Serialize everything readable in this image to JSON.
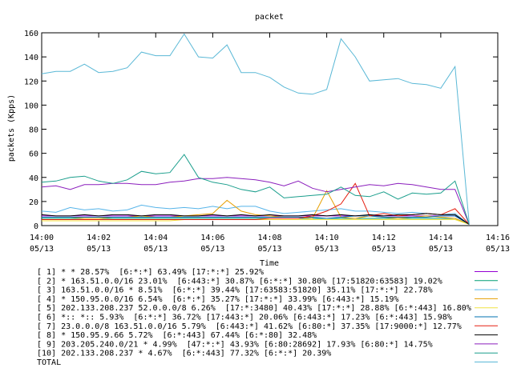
{
  "chart_data": {
    "type": "line",
    "title": "packet",
    "xlabel": "Time",
    "ylabel": "packets (Kpps)",
    "ylim": [
      0,
      160
    ],
    "yticks": [
      0,
      20,
      40,
      60,
      80,
      100,
      120,
      140,
      160
    ],
    "xlim": [
      "14:00",
      "14:16"
    ],
    "xticks": [
      {
        "time": "14:00",
        "date": "05/13"
      },
      {
        "time": "14:02",
        "date": "05/13"
      },
      {
        "time": "14:04",
        "date": "05/13"
      },
      {
        "time": "14:06",
        "date": "05/13"
      },
      {
        "time": "14:08",
        "date": "05/13"
      },
      {
        "time": "14:10",
        "date": "05/13"
      },
      {
        "time": "14:12",
        "date": "05/13"
      },
      {
        "time": "14:14",
        "date": "05/13"
      },
      {
        "time": "14:16",
        "date": "05/13"
      }
    ],
    "grid": false,
    "legend_placement": "bottom",
    "x": [
      "14:00",
      "14:00:30",
      "14:01",
      "14:01:30",
      "14:02",
      "14:02:30",
      "14:03",
      "14:03:30",
      "14:04",
      "14:04:30",
      "14:05",
      "14:05:30",
      "14:06",
      "14:06:30",
      "14:07",
      "14:07:30",
      "14:08",
      "14:08:30",
      "14:09",
      "14:09:30",
      "14:10",
      "14:10:30",
      "14:11",
      "14:11:30",
      "14:12",
      "14:12:30",
      "14:13",
      "14:13:30",
      "14:14",
      "14:14:30",
      "14:15"
    ],
    "series": [
      {
        "name": "[ 1] * * 28.57%  [6:*:*] 63.49% [17:*:*] 25.92%",
        "color": "#9400d3",
        "values": [
          8,
          8,
          8,
          8,
          8,
          8,
          8,
          8,
          8,
          8,
          8,
          8,
          8,
          8,
          8,
          8,
          8,
          8,
          8,
          8,
          8,
          8,
          8,
          8,
          8,
          8,
          8,
          8,
          8,
          8,
          1
        ]
      },
      {
        "name": "[ 2] * 163.51.0.0/16 23.01%  [6:443:*] 30.87% [6:*:*] 30.80% [17:51820:63583] 19.02%",
        "color": "#009e73",
        "values": [
          6,
          6,
          6,
          6,
          6,
          6,
          6,
          6,
          6,
          6,
          6,
          6,
          6,
          6,
          6,
          6,
          6,
          6,
          6,
          6,
          6,
          6,
          6,
          6,
          6,
          6,
          6,
          6,
          6,
          6,
          1
        ]
      },
      {
        "name": "[ 3] 163.51.0.0/16 * 8.51%  [6:*:*] 39.44% [17:63583:51820] 35.11% [17:*:*] 22.78%",
        "color": "#56b4e9",
        "values": [
          12,
          11,
          15,
          13,
          14,
          12,
          13,
          17,
          15,
          14,
          15,
          14,
          16,
          14,
          16,
          16,
          12,
          10,
          11,
          12,
          13,
          14,
          12,
          12,
          11,
          10,
          11,
          10,
          9,
          10,
          1
        ]
      },
      {
        "name": "[ 4] * 150.95.0.0/16 6.54%  [6:*:*] 35.27% [17:*:*] 33.99% [6:443:*] 15.19%",
        "color": "#e69f00",
        "values": [
          7,
          7,
          7,
          6,
          6,
          7,
          7,
          8,
          7,
          7,
          8,
          9,
          10,
          21,
          12,
          9,
          8,
          7,
          7,
          6,
          29,
          7,
          6,
          8,
          7,
          6,
          7,
          8,
          7,
          6,
          1
        ]
      },
      {
        "name": "[ 5] 202.133.208.237 52.0.0.0/8 6.26%  [17:*:3480] 40.43% [17:*:*] 28.88% [6:*:443] 16.80%",
        "color": "#f0e442",
        "values": [
          4,
          4,
          4,
          4,
          4,
          4,
          4,
          4,
          4,
          4,
          5,
          5,
          5,
          5,
          5,
          5,
          5,
          5,
          5,
          5,
          5,
          5,
          5,
          5,
          5,
          5,
          5,
          5,
          5,
          5,
          1
        ]
      },
      {
        "name": "[ 6] *:: *:: 5.93%  [6:*:*] 36.72% [17:443:*] 20.06% [6:443:*] 17.23% [6:*:443] 15.98%",
        "color": "#0072b2",
        "values": [
          7,
          7,
          7,
          7,
          7,
          7,
          7,
          7,
          7,
          7,
          7,
          7,
          7,
          7,
          7,
          7,
          7,
          7,
          7,
          7,
          6,
          7,
          8,
          8,
          7,
          7,
          7,
          7,
          8,
          8,
          1
        ]
      },
      {
        "name": "[ 7] 23.0.0.0/8 163.51.0.0/16 5.79%  [6:443:*] 41.62% [6:80:*] 37.35% [17:9000:*] 12.77%",
        "color": "#e51e10",
        "values": [
          5,
          5,
          5,
          5,
          5,
          5,
          5,
          5,
          5,
          5,
          5,
          5,
          5,
          5,
          5,
          5,
          6,
          6,
          6,
          8,
          12,
          18,
          35,
          8,
          10,
          8,
          9,
          10,
          9,
          14,
          1
        ]
      },
      {
        "name": "[ 8] * 150.95.9.66 5.72%  [6:*:443] 67.44% [6:*:80] 32.48%",
        "color": "#000000",
        "values": [
          9,
          8,
          8,
          9,
          8,
          9,
          9,
          8,
          9,
          9,
          8,
          8,
          9,
          8,
          9,
          8,
          9,
          8,
          8,
          9,
          8,
          9,
          8,
          9,
          8,
          9,
          9,
          10,
          9,
          9,
          1
        ]
      },
      {
        "name": "[ 9] 203.205.240.0/21 * 4.99%  [47:*:*] 43.93% [6:80:28692] 17.93% [6:80:*] 14.75%",
        "color": "#8b1fbd",
        "values": [
          32,
          33,
          30,
          34,
          34,
          35,
          35,
          34,
          34,
          36,
          37,
          39,
          39,
          40,
          39,
          38,
          36,
          33,
          37,
          31,
          28,
          30,
          32,
          34,
          33,
          35,
          34,
          32,
          30,
          30,
          1
        ]
      },
      {
        "name": "[10] 202.133.208.237 * 4.67%  [6:*:443] 77.32% [6:*:*] 20.39%",
        "color": "#1a9e8c",
        "values": [
          36,
          37,
          40,
          41,
          37,
          35,
          38,
          45,
          43,
          44,
          59,
          40,
          36,
          34,
          30,
          28,
          32,
          23,
          24,
          25,
          26,
          32,
          25,
          24,
          28,
          22,
          27,
          26,
          27,
          37,
          1
        ]
      },
      {
        "name": "TOTAL",
        "color": "#5ab8d6",
        "values": [
          126,
          128,
          128,
          134,
          127,
          128,
          131,
          144,
          141,
          141,
          159,
          140,
          139,
          150,
          127,
          127,
          123,
          115,
          110,
          109,
          113,
          155,
          140,
          120,
          121,
          122,
          118,
          117,
          114,
          132,
          1
        ]
      }
    ]
  }
}
